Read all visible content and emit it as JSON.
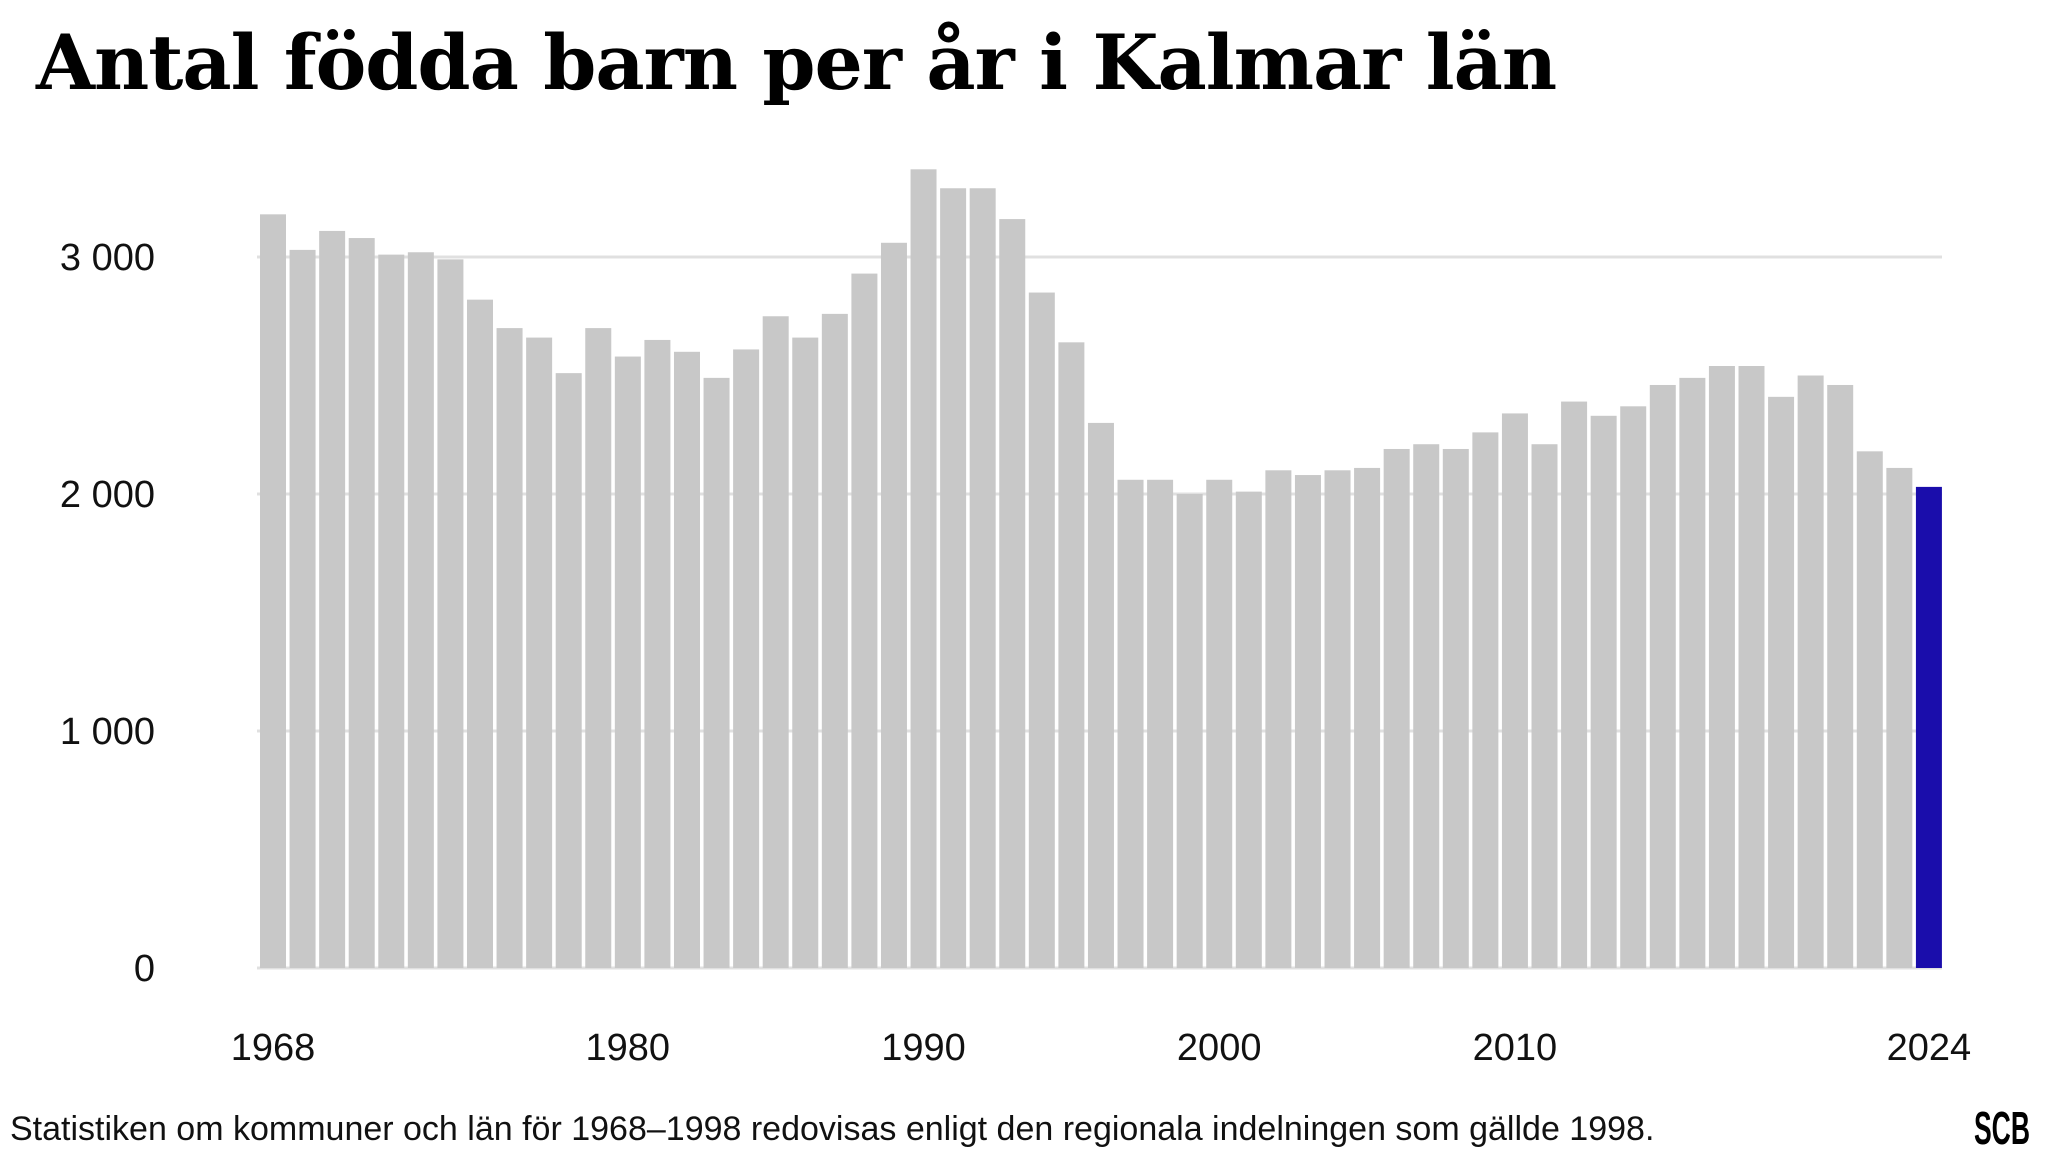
{
  "title": "Antal födda barn per år i Kalmar län",
  "footnote": "Statistiken om kommuner och län för 1968–1998 redovisas enligt den regionala indelningen som gällde 1998.",
  "logo_text": "SCB",
  "colors": {
    "bar": "#c8c8c8",
    "highlight": "#1a0dab",
    "grid": "#e0e0e0",
    "text": "#111111"
  },
  "chart_data": {
    "type": "bar",
    "title": "Antal födda barn per år i Kalmar län",
    "xlabel": "",
    "ylabel": "",
    "ylim": [
      0,
      3400
    ],
    "y_ticks": [
      0,
      1000,
      2000,
      3000
    ],
    "y_tick_labels": [
      "0",
      "1 000",
      "2 000",
      "3 000"
    ],
    "x_tick_labels": [
      "1968",
      "1980",
      "1990",
      "2000",
      "2010",
      "2024"
    ],
    "grid": true,
    "highlight_category": "2024",
    "categories": [
      "1968",
      "1969",
      "1970",
      "1971",
      "1972",
      "1973",
      "1974",
      "1975",
      "1976",
      "1977",
      "1978",
      "1979",
      "1980",
      "1981",
      "1982",
      "1983",
      "1984",
      "1985",
      "1986",
      "1987",
      "1988",
      "1989",
      "1990",
      "1991",
      "1992",
      "1993",
      "1994",
      "1995",
      "1996",
      "1997",
      "1998",
      "1999",
      "2000",
      "2001",
      "2002",
      "2003",
      "2004",
      "2005",
      "2006",
      "2007",
      "2008",
      "2009",
      "2010",
      "2011",
      "2012",
      "2013",
      "2014",
      "2015",
      "2016",
      "2017",
      "2018",
      "2019",
      "2020",
      "2021",
      "2022",
      "2023",
      "2024"
    ],
    "values": [
      3180,
      3030,
      3110,
      3080,
      3010,
      3020,
      2990,
      2820,
      2700,
      2660,
      2510,
      2700,
      2580,
      2650,
      2600,
      2490,
      2610,
      2750,
      2660,
      2760,
      2930,
      3060,
      3370,
      3290,
      3290,
      3160,
      2850,
      2640,
      2300,
      2060,
      2060,
      2000,
      2060,
      2010,
      2100,
      2080,
      2100,
      2110,
      2190,
      2210,
      2190,
      2260,
      2340,
      2210,
      2390,
      2330,
      2370,
      2460,
      2490,
      2540,
      2540,
      2410,
      2500,
      2460,
      2180,
      2110,
      2030
    ]
  }
}
